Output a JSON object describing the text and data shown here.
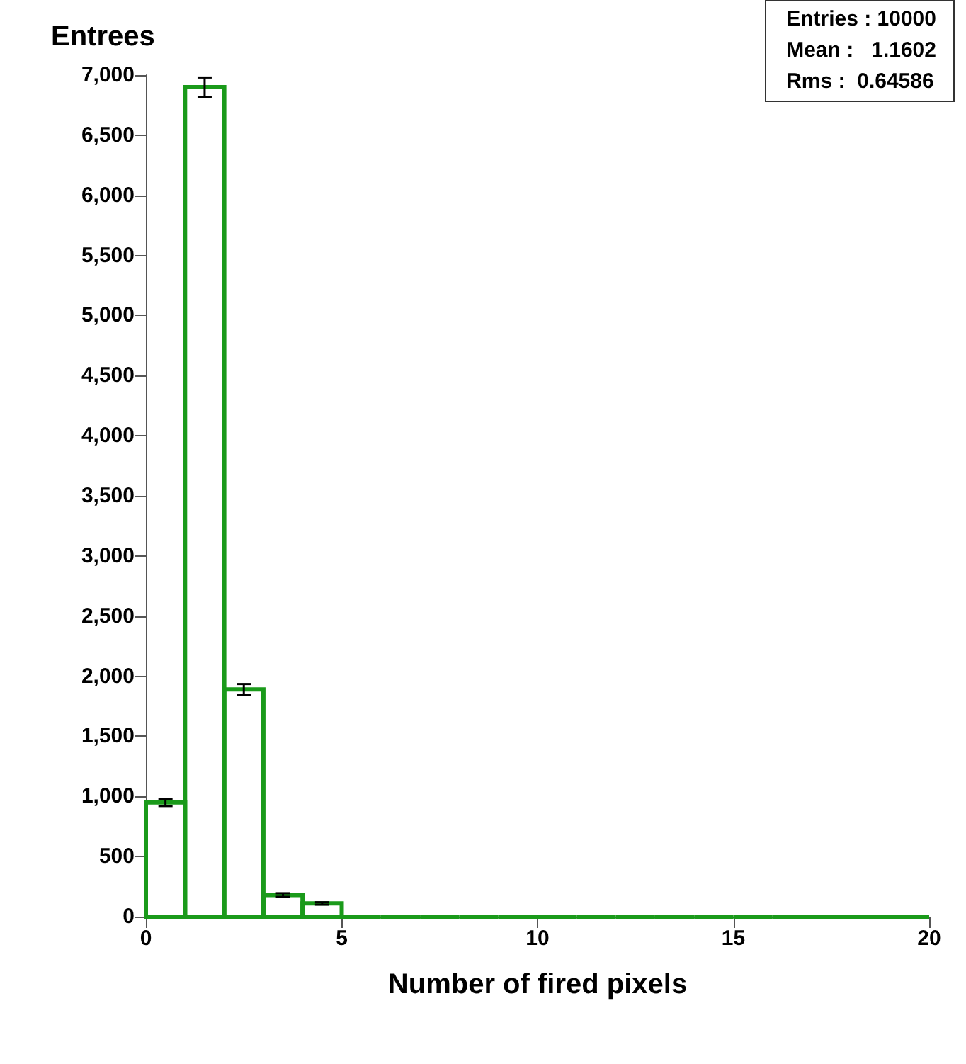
{
  "chart_data": {
    "type": "histogram",
    "ylabel": "Entrees",
    "xlabel": "Number of fired pixels",
    "bins": [
      0,
      1,
      2,
      3,
      4,
      5,
      6,
      7,
      8,
      9,
      10,
      11,
      12,
      13,
      14,
      15,
      16,
      17,
      18,
      19,
      20
    ],
    "values": [
      950,
      6900,
      1890,
      180,
      110,
      0,
      0,
      0,
      0,
      0,
      0,
      0,
      0,
      0,
      0,
      0,
      0,
      0,
      0,
      0
    ],
    "errors": [
      30,
      80,
      45,
      15,
      10,
      null,
      null,
      null,
      null,
      null,
      null,
      null,
      null,
      null,
      null,
      null,
      null,
      null,
      null,
      null
    ],
    "color": "#1a9a1a",
    "xlim": [
      0,
      20
    ],
    "xticks": [
      0,
      5,
      10,
      15,
      20
    ],
    "ylim": [
      0,
      7000
    ],
    "yticks": [
      0,
      500,
      {
        "value": 1000,
        "label": "1,000"
      },
      {
        "value": 1500,
        "label": "1,500"
      },
      {
        "value": 2000,
        "label": "2,000"
      },
      {
        "value": 2500,
        "label": "2,500"
      },
      {
        "value": 3000,
        "label": "3,000"
      },
      {
        "value": 3500,
        "label": "3,500"
      },
      {
        "value": 4000,
        "label": "4,000"
      },
      {
        "value": 4500,
        "label": "4,500"
      },
      {
        "value": 5000,
        "label": "5,000"
      },
      {
        "value": 5500,
        "label": "5,500"
      },
      {
        "value": 6000,
        "label": "6,000"
      },
      {
        "value": 6500,
        "label": "6,500"
      },
      {
        "value": 7000,
        "label": "7,000"
      }
    ],
    "grid": false,
    "annotations": [
      "Entries : 10000",
      "Mean :   1.1602",
      "Rms :  0.64586"
    ]
  }
}
